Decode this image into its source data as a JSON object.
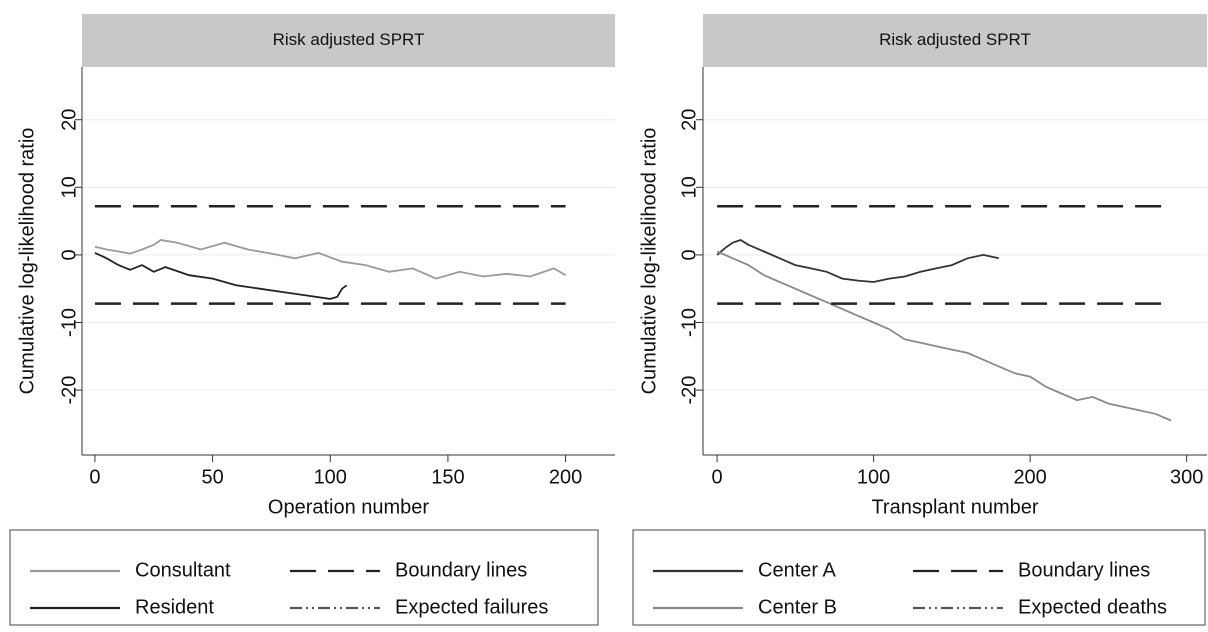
{
  "chart_data": [
    {
      "type": "line",
      "title": "Risk adjusted SPRT",
      "ylabel": "Cumulative log-likelihood ratio",
      "xlabel": "Operation number",
      "xlim": [
        -5.5,
        221
      ],
      "ylim": [
        -29.6,
        27.8
      ],
      "xticks": [
        0,
        50,
        100,
        150,
        200
      ],
      "yticks": [
        -20,
        -10,
        0,
        10,
        20
      ],
      "grid": true,
      "series": [
        {
          "name": "Consultant",
          "color": "#9a9a9a",
          "dash": "solid",
          "x": [
            0,
            5,
            10,
            15,
            20,
            25,
            28,
            35,
            45,
            55,
            65,
            75,
            85,
            95,
            105,
            115,
            125,
            135,
            145,
            155,
            165,
            175,
            185,
            195,
            200
          ],
          "values": [
            1.2,
            0.8,
            0.5,
            0.2,
            0.8,
            1.5,
            2.2,
            1.8,
            0.8,
            1.8,
            0.8,
            0.2,
            -0.5,
            0.3,
            -1,
            -1.5,
            -2.5,
            -2,
            -3.5,
            -2.5,
            -3.2,
            -2.8,
            -3.2,
            -2,
            -3
          ]
        },
        {
          "name": "Resident",
          "color": "#222222",
          "dash": "solid",
          "x": [
            0,
            5,
            10,
            15,
            20,
            25,
            30,
            40,
            50,
            60,
            70,
            80,
            90,
            100,
            103,
            105,
            107
          ],
          "values": [
            0.3,
            -0.5,
            -1.5,
            -2.2,
            -1.5,
            -2.5,
            -1.8,
            -3,
            -3.5,
            -4.5,
            -5,
            -5.5,
            -6,
            -6.5,
            -6.2,
            -5,
            -4.5
          ]
        },
        {
          "name": "Boundary lines",
          "color": "#222222",
          "dash": "long",
          "x": [
            0,
            200,
            null,
            0,
            200
          ],
          "values": [
            7.2,
            7.2,
            null,
            -7.2,
            -7.2
          ]
        },
        {
          "name": "Expected failures",
          "color": "#555555",
          "dash": "dashdot",
          "x": [],
          "values": []
        }
      ]
    },
    {
      "type": "line",
      "title": "Risk adjusted SPRT",
      "ylabel": "Cumulative log-likelihood ratio",
      "xlabel": "Transplant number",
      "xlim": [
        -9,
        313
      ],
      "ylim": [
        -29.6,
        27.8
      ],
      "xticks": [
        0,
        100,
        200,
        300
      ],
      "yticks": [
        -20,
        -10,
        0,
        10,
        20
      ],
      "grid": true,
      "series": [
        {
          "name": "Center A",
          "color": "#333333",
          "dash": "solid",
          "x": [
            0,
            5,
            10,
            15,
            20,
            30,
            40,
            50,
            60,
            70,
            80,
            90,
            100,
            110,
            120,
            130,
            140,
            150,
            160,
            170,
            180
          ],
          "values": [
            0,
            1,
            1.8,
            2.2,
            1.5,
            0.5,
            -0.5,
            -1.5,
            -2,
            -2.5,
            -3.5,
            -3.8,
            -4,
            -3.5,
            -3.2,
            -2.5,
            -2,
            -1.5,
            -0.5,
            0,
            -0.5
          ]
        },
        {
          "name": "Center B",
          "color": "#8a8a8a",
          "dash": "solid",
          "x": [
            0,
            10,
            20,
            30,
            40,
            50,
            60,
            70,
            80,
            90,
            100,
            110,
            120,
            130,
            140,
            150,
            160,
            170,
            180,
            190,
            200,
            210,
            220,
            230,
            240,
            250,
            260,
            270,
            280,
            290
          ],
          "values": [
            0.5,
            -0.5,
            -1.5,
            -3,
            -4,
            -5,
            -6,
            -7,
            -8,
            -9,
            -10,
            -11,
            -12.5,
            -13,
            -13.5,
            -14,
            -14.5,
            -15.5,
            -16.5,
            -17.5,
            -18,
            -19.5,
            -20.5,
            -21.5,
            -21,
            -22,
            -22.5,
            -23,
            -23.5,
            -24.5
          ]
        },
        {
          "name": "Boundary lines",
          "color": "#222222",
          "dash": "long",
          "x": [
            0,
            290,
            null,
            0,
            290
          ],
          "values": [
            7.2,
            7.2,
            null,
            -7.2,
            -7.2
          ]
        },
        {
          "name": "Expected deaths",
          "color": "#555555",
          "dash": "dashdot",
          "x": [],
          "values": []
        }
      ]
    }
  ]
}
